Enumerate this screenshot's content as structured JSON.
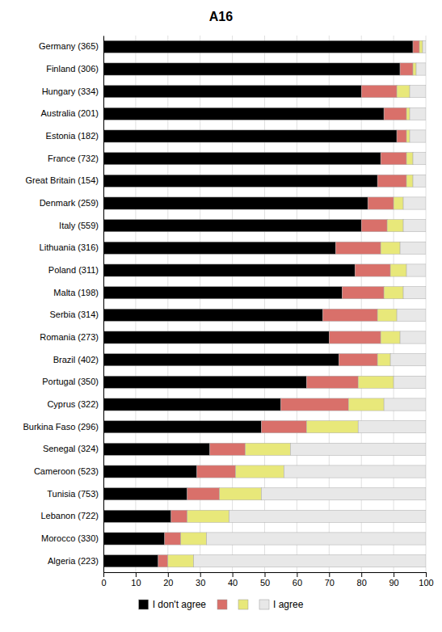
{
  "chart_data": {
    "type": "bar",
    "orientation": "horizontal",
    "stacked": true,
    "title": "A16",
    "categories": [
      "Germany (365)",
      "Finland (306)",
      "Hungary (334)",
      "Australia (201)",
      "Estonia (182)",
      "France (732)",
      "Great Britain (154)",
      "Denmark (259)",
      "Italy (559)",
      "Lithuania (316)",
      "Poland (311)",
      "Malta (198)",
      "Serbia (314)",
      "Romania (273)",
      "Brazil (402)",
      "Portugal (350)",
      "Cyprus (322)",
      "Burkina Faso (296)",
      "Senegal (324)",
      "Cameroon (523)",
      "Tunisia (753)",
      "Lebanon (722)",
      "Morocco (330)",
      "Algeria (223)"
    ],
    "series": [
      {
        "name": "I don't agree",
        "color": "#000000",
        "values": [
          96,
          92,
          80,
          87,
          91,
          86,
          85,
          82,
          80,
          72,
          78,
          74,
          68,
          70,
          73,
          63,
          55,
          49,
          33,
          29,
          26,
          21,
          19,
          17
        ]
      },
      {
        "color": "#d9706a",
        "values": [
          2,
          4,
          11,
          7,
          3,
          8,
          9,
          8,
          8,
          14,
          11,
          13,
          17,
          16,
          12,
          16,
          21,
          14,
          11,
          12,
          10,
          5,
          5,
          3
        ]
      },
      {
        "color": "#e8e87a",
        "values": [
          1,
          1,
          4,
          1,
          1,
          2,
          2,
          3,
          5,
          6,
          5,
          6,
          6,
          6,
          4,
          11,
          11,
          16,
          14,
          15,
          13,
          13,
          8,
          8
        ]
      },
      {
        "name": "I agree",
        "color": "#e8e8e8",
        "values": [
          1,
          3,
          5,
          5,
          5,
          4,
          4,
          7,
          7,
          8,
          6,
          7,
          9,
          8,
          11,
          10,
          13,
          21,
          42,
          44,
          51,
          61,
          68,
          72
        ]
      }
    ],
    "xlim": [
      0,
      100
    ],
    "xticks": [
      0,
      10,
      20,
      30,
      40,
      50,
      60,
      70,
      80,
      90,
      100
    ],
    "grid": true,
    "legend": "bottom"
  }
}
